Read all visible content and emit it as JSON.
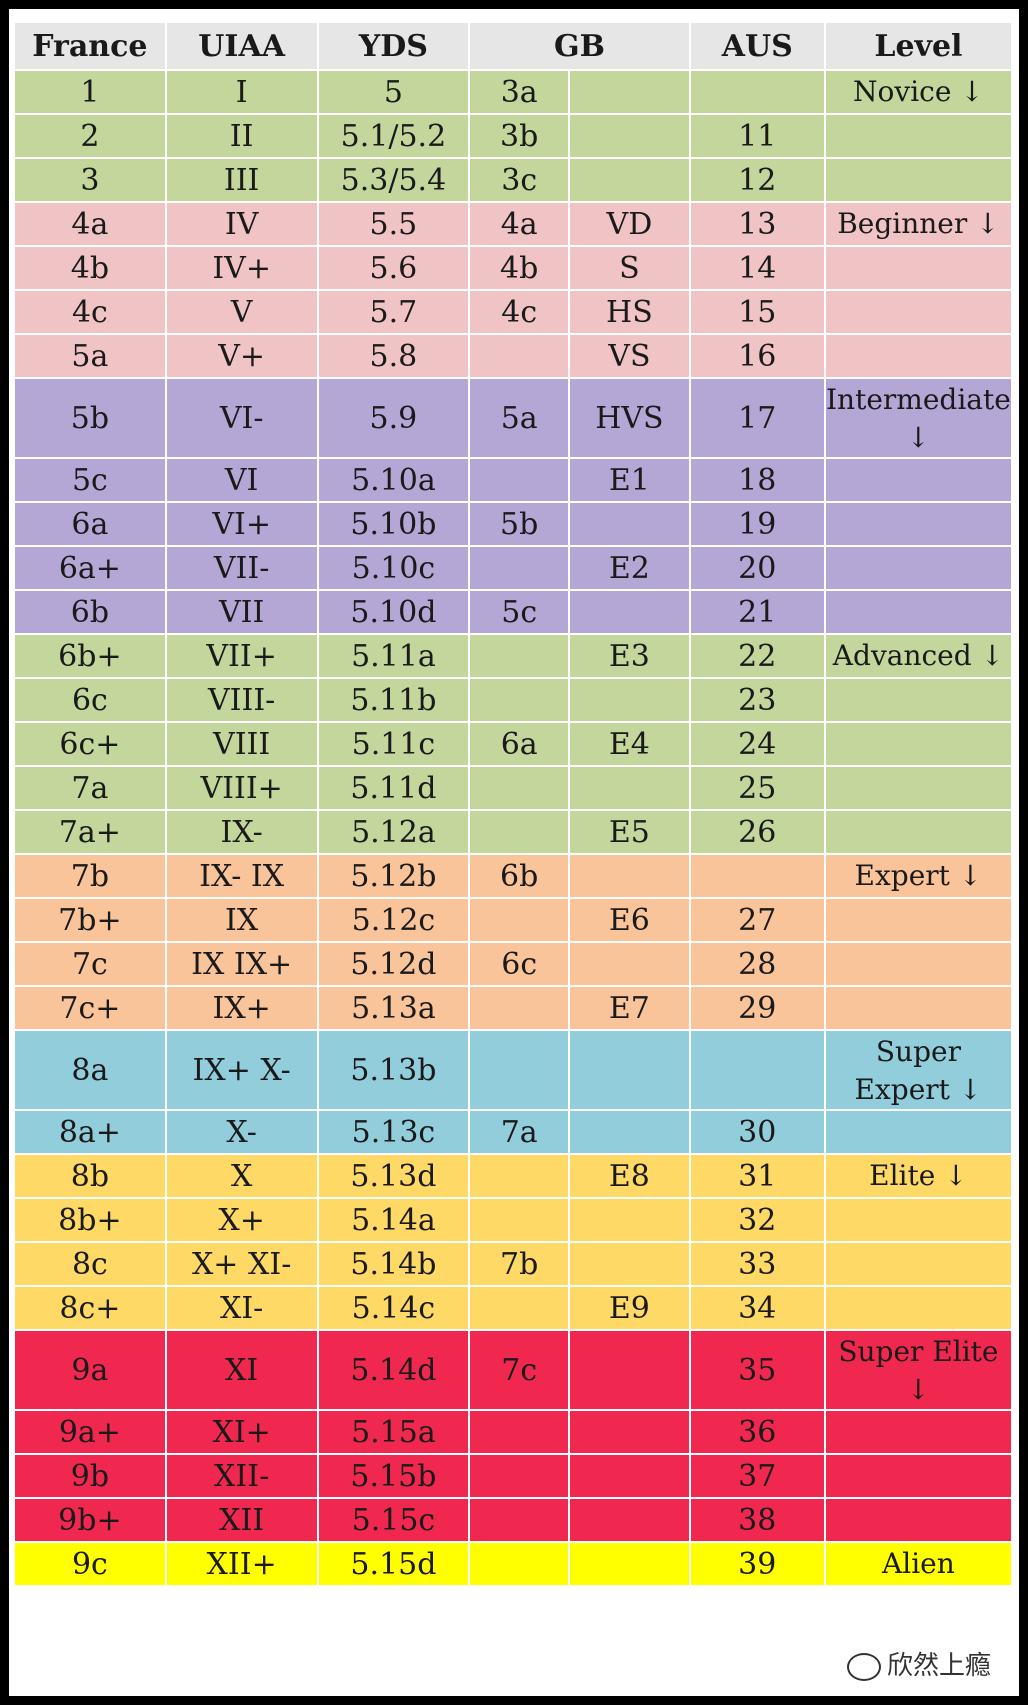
{
  "headers": [
    "France",
    "UIAA",
    "YDS",
    "GB",
    "AUS",
    "Level"
  ],
  "colors": {
    "novice": "#c3d69b",
    "beginner": "#f0c4c4",
    "intermediate": "#b4a7d6",
    "advanced": "#c3d69b",
    "expert": "#f9c49a",
    "super_expert": "#92cddc",
    "elite": "#ffd966",
    "super_elite": "#f0284f",
    "alien": "#ffff00"
  },
  "groups": [
    {
      "key": "novice",
      "level": "Novice ↓",
      "rows": [
        [
          "1",
          "I",
          "5",
          "3a",
          "",
          ""
        ],
        [
          "2",
          "II",
          "5.1/5.2",
          "3b",
          "",
          "11"
        ],
        [
          "3",
          "III",
          "5.3/5.4",
          "3c",
          "",
          "12"
        ]
      ]
    },
    {
      "key": "beginner",
      "level": "Beginner ↓",
      "rows": [
        [
          "4a",
          "IV",
          "5.5",
          "4a",
          "VD",
          "13"
        ],
        [
          "4b",
          "IV+",
          "5.6",
          "4b",
          "S",
          "14"
        ],
        [
          "4c",
          "V",
          "5.7",
          "4c",
          "HS",
          "15"
        ],
        [
          "5a",
          "V+",
          "5.8",
          "",
          "VS",
          "16"
        ]
      ]
    },
    {
      "key": "intermediate",
      "level": "Intermediate ↓",
      "rows": [
        [
          "5b",
          "VI-",
          "5.9",
          "5a",
          "HVS",
          "17"
        ],
        [
          "5c",
          "VI",
          "5.10a",
          "",
          "E1",
          "18"
        ],
        [
          "6a",
          "VI+",
          "5.10b",
          "5b",
          "",
          "19"
        ],
        [
          "6a+",
          "VII-",
          "5.10c",
          "",
          "E2",
          "20"
        ],
        [
          "6b",
          "VII",
          "5.10d",
          "5c",
          "",
          "21"
        ]
      ]
    },
    {
      "key": "advanced",
      "level": "Advanced ↓",
      "rows": [
        [
          "6b+",
          "VII+",
          "5.11a",
          "",
          "E3",
          "22"
        ],
        [
          "6c",
          "VIII-",
          "5.11b",
          "",
          "",
          "23"
        ],
        [
          "6c+",
          "VIII",
          "5.11c",
          "6a",
          "E4",
          "24"
        ],
        [
          "7a",
          "VIII+",
          "5.11d",
          "",
          "",
          "25"
        ],
        [
          "7a+",
          "IX-",
          "5.12a",
          "",
          "E5",
          "26"
        ]
      ]
    },
    {
      "key": "expert",
      "level": "Expert ↓",
      "rows": [
        [
          "7b",
          "IX-  IX",
          "5.12b",
          "6b",
          "",
          ""
        ],
        [
          "7b+",
          "IX",
          "5.12c",
          "",
          "E6",
          "27"
        ],
        [
          "7c",
          "IX  IX+",
          "5.12d",
          "6c",
          "",
          "28"
        ],
        [
          "7c+",
          "IX+",
          "5.13a",
          "",
          "E7",
          "29"
        ]
      ]
    },
    {
      "key": "super_expert",
      "level": "Super Expert ↓",
      "rows": [
        [
          "8a",
          "IX+  X-",
          "5.13b",
          "",
          "",
          ""
        ],
        [
          "8a+",
          "X-",
          "5.13c",
          "7a",
          "",
          "30"
        ]
      ]
    },
    {
      "key": "elite",
      "level": "Elite ↓",
      "rows": [
        [
          "8b",
          "X",
          "5.13d",
          "",
          "E8",
          "31"
        ],
        [
          "8b+",
          "X+",
          "5.14a",
          "",
          "",
          "32"
        ],
        [
          "8c",
          "X+ XI-",
          "5.14b",
          "7b",
          "",
          "33"
        ],
        [
          "8c+",
          "XI-",
          "5.14c",
          "",
          "E9",
          "34"
        ]
      ]
    },
    {
      "key": "super_elite",
      "level": "Super Elite ↓",
      "rows": [
        [
          "9a",
          "XI",
          "5.14d",
          "7c",
          "",
          "35"
        ],
        [
          "9a+",
          "XI+",
          "5.15a",
          "",
          "",
          "36"
        ],
        [
          "9b",
          "XII-",
          "5.15b",
          "",
          "",
          "37"
        ],
        [
          "9b+",
          "XII",
          "5.15c",
          "",
          "",
          "38"
        ]
      ]
    },
    {
      "key": "alien",
      "level": "Alien",
      "rows": [
        [
          "9c",
          "XII+",
          "5.15d",
          "",
          "",
          "39"
        ]
      ]
    }
  ],
  "watermark": {
    "icon": "wechat-icon",
    "text": "欣然上瘾"
  }
}
